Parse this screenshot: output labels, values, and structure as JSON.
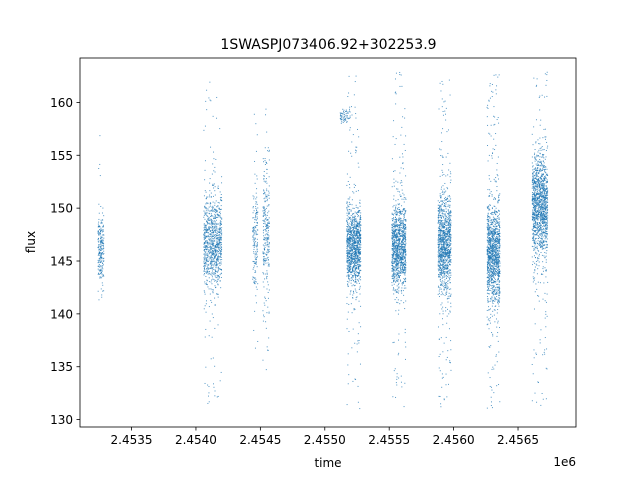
{
  "chart_data": {
    "type": "scatter",
    "title": "1SWASPJ073406.92+302253.9",
    "xlabel": "time",
    "ylabel": "flux",
    "x_offset_label": "1e6",
    "xlim": [
      2453100,
      2456950
    ],
    "ylim": [
      129.3,
      164.2
    ],
    "x_ticks": [
      2453500,
      2454000,
      2454500,
      2455000,
      2455500,
      2456000,
      2456500
    ],
    "x_tick_labels": [
      "2.4535",
      "2.4540",
      "2.4545",
      "2.4550",
      "2.4555",
      "2.4560",
      "2.4565"
    ],
    "y_ticks": [
      130,
      135,
      140,
      145,
      150,
      155,
      160
    ],
    "y_tick_labels": [
      "130",
      "135",
      "140",
      "145",
      "150",
      "155",
      "160"
    ],
    "grid": false,
    "point_color": "#1f77b4",
    "clusters": [
      {
        "x_start": 2453240,
        "x_end": 2453285,
        "center": 146.0,
        "spread": 1.8,
        "y_min": 139.5,
        "y_max": 158.0,
        "n": 220,
        "outlier_fraction": 0.04
      },
      {
        "x_start": 2454060,
        "x_end": 2454200,
        "center": 146.8,
        "spread": 2.3,
        "y_min": 131.5,
        "y_max": 162.5,
        "n": 900,
        "outlier_fraction": 0.08
      },
      {
        "x_start": 2454440,
        "x_end": 2454480,
        "center": 147.0,
        "spread": 2.5,
        "y_min": 136.0,
        "y_max": 159.5,
        "n": 160,
        "outlier_fraction": 0.15
      },
      {
        "x_start": 2454520,
        "x_end": 2454570,
        "center": 148.0,
        "spread": 3.0,
        "y_min": 134.5,
        "y_max": 159.5,
        "n": 260,
        "outlier_fraction": 0.15
      },
      {
        "x_start": 2455120,
        "x_end": 2455200,
        "center": 158.8,
        "spread": 0.4,
        "y_min": 157.5,
        "y_max": 160.0,
        "n": 60,
        "outlier_fraction": 0.0
      },
      {
        "x_start": 2455170,
        "x_end": 2455280,
        "center": 146.3,
        "spread": 1.9,
        "y_min": 131.0,
        "y_max": 162.5,
        "n": 1100,
        "outlier_fraction": 0.1
      },
      {
        "x_start": 2455520,
        "x_end": 2455630,
        "center": 146.3,
        "spread": 2.0,
        "y_min": 131.0,
        "y_max": 163.0,
        "n": 1100,
        "outlier_fraction": 0.1
      },
      {
        "x_start": 2455880,
        "x_end": 2455980,
        "center": 146.5,
        "spread": 2.2,
        "y_min": 131.0,
        "y_max": 163.0,
        "n": 1100,
        "outlier_fraction": 0.12
      },
      {
        "x_start": 2456260,
        "x_end": 2456360,
        "center": 145.8,
        "spread": 2.3,
        "y_min": 131.0,
        "y_max": 163.0,
        "n": 1200,
        "outlier_fraction": 0.12
      },
      {
        "x_start": 2456610,
        "x_end": 2456730,
        "center": 150.2,
        "spread": 2.5,
        "y_min": 131.0,
        "y_max": 163.0,
        "n": 1300,
        "outlier_fraction": 0.1
      }
    ]
  }
}
